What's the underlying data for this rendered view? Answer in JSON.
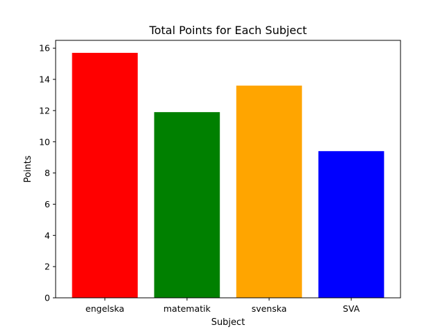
{
  "chart_data": {
    "type": "bar",
    "title": "Total Points for Each Subject",
    "xlabel": "Subject",
    "ylabel": "Points",
    "categories": [
      "engelska",
      "matematik",
      "svenska",
      "SVA"
    ],
    "values": [
      15.7,
      11.9,
      13.6,
      9.4
    ],
    "colors": [
      "#ff0000",
      "#008000",
      "#ffa500",
      "#0000ff"
    ],
    "ylim": [
      0,
      16.5
    ],
    "yticks": [
      0,
      2,
      4,
      6,
      8,
      10,
      12,
      14,
      16
    ],
    "grid": false,
    "legend": "none"
  }
}
